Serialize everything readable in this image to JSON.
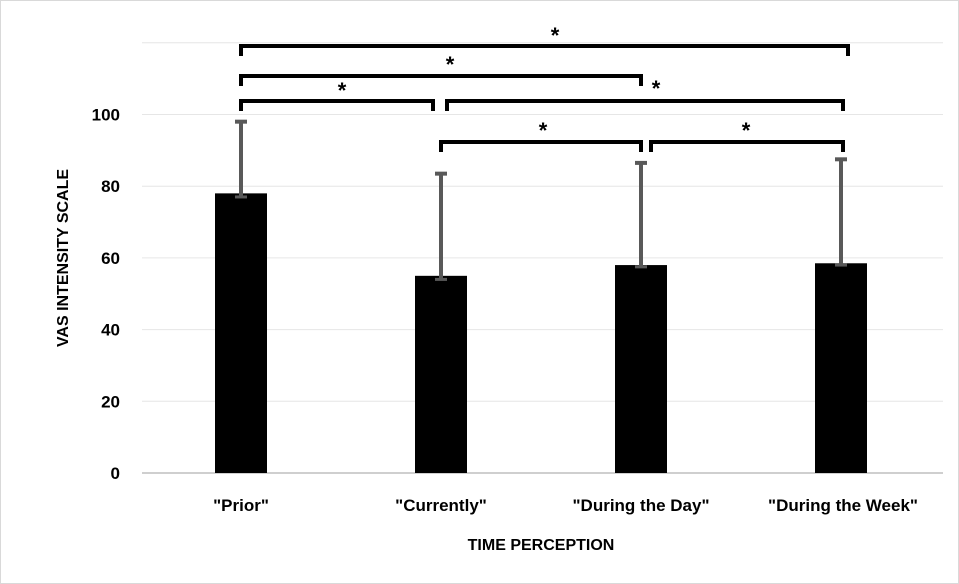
{
  "chart_data": {
    "type": "bar",
    "title": "",
    "xlabel": "TIME PERCEPTION",
    "ylabel": "VAS INTENSITY SCALE",
    "categories": [
      "\"Prior\"",
      "\"Currently\"",
      "\"During the Day\"",
      "\"During the Week\""
    ],
    "values": [
      78,
      55,
      58,
      58.5
    ],
    "error_upper": [
      98,
      83.5,
      86.5,
      87.5
    ],
    "error_lower": [
      77,
      54,
      57.5,
      58
    ],
    "ylim": [
      0,
      120
    ],
    "yticks": [
      0,
      20,
      40,
      60,
      80,
      100
    ],
    "grid": true,
    "legend": "none",
    "bar_color": "#000000",
    "error_color": "#595959",
    "grid_color": "#e6e6e6",
    "significance": [
      {
        "from": 0,
        "to": 3,
        "label": "*"
      },
      {
        "from": 0,
        "to": 2,
        "label": "*"
      },
      {
        "from": 0,
        "to": 1,
        "label": "*"
      },
      {
        "from": 1,
        "to": 3,
        "label": "*"
      },
      {
        "from": 1,
        "to": 2,
        "label": "*"
      },
      {
        "from": 2,
        "to": 3,
        "label": "*"
      }
    ]
  }
}
